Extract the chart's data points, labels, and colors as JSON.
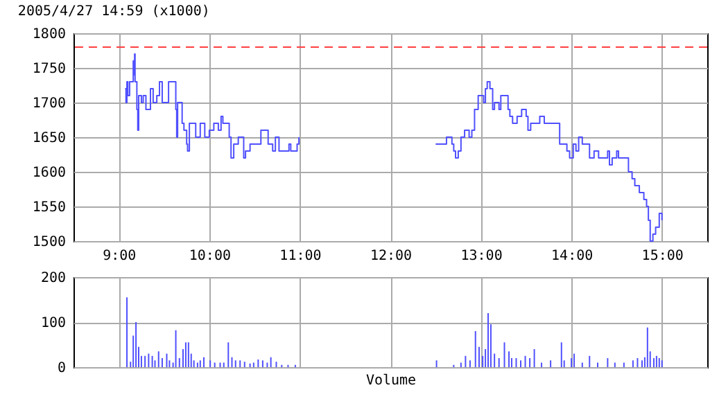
{
  "chart_data": [
    {
      "type": "step",
      "title": "2005/4/27 14:59  (x1000)",
      "color": "#5050ff",
      "x": [
        9.07,
        9.08,
        9.09,
        9.1,
        9.12,
        9.16,
        9.17,
        9.175,
        9.18,
        9.2,
        9.21,
        9.22,
        9.25,
        9.27,
        9.3,
        9.35,
        9.38,
        9.42,
        9.45,
        9.48,
        9.55,
        9.63,
        9.64,
        9.65,
        9.7,
        9.72,
        9.75,
        9.76,
        9.78,
        9.85,
        9.9,
        9.95,
        10.0,
        10.05,
        10.1,
        10.13,
        10.15,
        10.22,
        10.24,
        10.27,
        10.32,
        10.38,
        10.4,
        10.45,
        10.57,
        10.65,
        10.7,
        10.73,
        10.77,
        10.88,
        10.9,
        10.97,
        10.99,
        11.5,
        12.5,
        12.62,
        12.68,
        12.7,
        12.72,
        12.75,
        12.78,
        12.82,
        12.87,
        12.9,
        12.93,
        12.97,
        13.03,
        13.05,
        13.07,
        13.1,
        13.13,
        13.15,
        13.2,
        13.22,
        13.3,
        13.32,
        13.35,
        13.4,
        13.45,
        13.5,
        13.52,
        13.55,
        13.65,
        13.7,
        13.87,
        13.95,
        13.98,
        14.02,
        14.05,
        14.08,
        14.12,
        14.2,
        14.25,
        14.3,
        14.4,
        14.42,
        14.45,
        14.5,
        14.52,
        14.63,
        14.67,
        14.7,
        14.75,
        14.8,
        14.83,
        14.85,
        14.87,
        14.9,
        14.93,
        14.97,
        15.0
      ],
      "values": [
        1720,
        1700,
        1730,
        1710,
        1730,
        1760,
        1740,
        1770,
        1730,
        1690,
        1660,
        1710,
        1700,
        1710,
        1690,
        1720,
        1700,
        1710,
        1730,
        1700,
        1730,
        1690,
        1650,
        1700,
        1670,
        1660,
        1640,
        1630,
        1670,
        1650,
        1670,
        1650,
        1660,
        1670,
        1660,
        1680,
        1670,
        1650,
        1620,
        1640,
        1650,
        1620,
        1630,
        1640,
        1660,
        1640,
        1630,
        1650,
        1630,
        1640,
        1630,
        1640,
        1650,
        null,
        1640,
        1650,
        1640,
        1630,
        1620,
        1630,
        1650,
        1660,
        1650,
        1660,
        1690,
        1710,
        1700,
        1720,
        1730,
        1720,
        1690,
        1700,
        1690,
        1710,
        1690,
        1680,
        1670,
        1680,
        1690,
        1680,
        1660,
        1670,
        1680,
        1670,
        1640,
        1630,
        1620,
        1640,
        1630,
        1650,
        1640,
        1620,
        1630,
        1620,
        1630,
        1610,
        1620,
        1630,
        1620,
        1600,
        1590,
        1580,
        1570,
        1560,
        1550,
        1530,
        1500,
        1510,
        1520,
        1540,
        1530
      ],
      "xlim": [
        8.5,
        15.5
      ],
      "xticks": [
        {
          "value": 9,
          "label": "9:00"
        },
        {
          "value": 10,
          "label": "10:00"
        },
        {
          "value": 11,
          "label": "11:00"
        },
        {
          "value": 12,
          "label": "12:00"
        },
        {
          "value": 13,
          "label": "13:00"
        },
        {
          "value": 14,
          "label": "14:00"
        },
        {
          "value": 15,
          "label": "15:00"
        }
      ],
      "ylim": [
        1500,
        1800
      ],
      "yticks": [
        1500,
        1550,
        1600,
        1650,
        1700,
        1750,
        1800
      ],
      "grid": true,
      "ref_lines": [
        {
          "axis": "y",
          "value": 1780,
          "color": "#ff4040",
          "line_style": "dashed"
        }
      ]
    },
    {
      "type": "bar",
      "xlabel": "Volume",
      "color": "#5050ff",
      "tick_labels": "y",
      "x": [
        9.09,
        9.13,
        9.16,
        9.19,
        9.22,
        9.25,
        9.29,
        9.33,
        9.37,
        9.4,
        9.44,
        9.48,
        9.53,
        9.56,
        9.6,
        9.63,
        9.67,
        9.71,
        9.74,
        9.77,
        9.8,
        9.83,
        9.87,
        9.9,
        9.94,
        10.01,
        10.06,
        10.12,
        10.16,
        10.21,
        10.25,
        10.29,
        10.34,
        10.39,
        10.45,
        10.49,
        10.54,
        10.59,
        10.64,
        10.68,
        10.74,
        10.8,
        10.87,
        10.95,
        12.51,
        12.7,
        12.78,
        12.83,
        12.88,
        12.94,
        12.98,
        13.02,
        13.05,
        13.08,
        13.11,
        13.15,
        13.2,
        13.26,
        13.31,
        13.34,
        13.39,
        13.44,
        13.49,
        13.54,
        13.59,
        13.67,
        13.77,
        13.89,
        13.92,
        14.0,
        14.03,
        14.12,
        14.2,
        14.29,
        14.4,
        14.48,
        14.58,
        14.68,
        14.73,
        14.78,
        14.81,
        14.84,
        14.87,
        14.91,
        14.94,
        14.97,
        15.0
      ],
      "values": [
        155,
        12,
        70,
        100,
        45,
        25,
        25,
        30,
        25,
        15,
        35,
        20,
        30,
        15,
        10,
        82,
        20,
        40,
        55,
        55,
        30,
        15,
        10,
        15,
        22,
        15,
        10,
        10,
        10,
        55,
        22,
        15,
        15,
        12,
        8,
        10,
        17,
        15,
        10,
        22,
        12,
        5,
        5,
        5,
        15,
        5,
        10,
        25,
        15,
        80,
        45,
        25,
        40,
        120,
        95,
        30,
        20,
        55,
        35,
        20,
        20,
        15,
        25,
        20,
        40,
        10,
        15,
        55,
        15,
        20,
        30,
        10,
        25,
        10,
        20,
        10,
        10,
        15,
        20,
        15,
        22,
        88,
        35,
        20,
        25,
        20,
        15
      ],
      "xlim": [
        8.5,
        15.5
      ],
      "xticks": [
        9,
        10,
        11,
        12,
        13,
        14,
        15
      ],
      "ylim": [
        0,
        200
      ],
      "yticks": [
        0,
        100,
        200
      ],
      "grid": true
    }
  ]
}
